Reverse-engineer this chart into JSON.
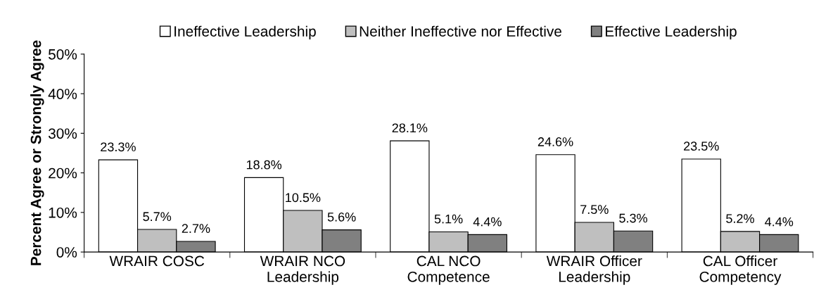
{
  "chart_data": {
    "type": "bar",
    "ylabel": "Percent Agree or Strongly Agree",
    "categories": [
      "WRAIR COSC",
      "WRAIR NCO\nLeadership",
      "CAL NCO\nCompetence",
      "WRAIR Officer\nLeadership",
      "CAL Officer\nCompetency"
    ],
    "series": [
      {
        "name": "Ineffective Leadership",
        "color": "#ffffff",
        "values": [
          23.3,
          18.8,
          28.1,
          24.6,
          23.5
        ],
        "value_labels": [
          "23.3%",
          "18.8%",
          "28.1%",
          "24.6%",
          "23.5%"
        ]
      },
      {
        "name": "Neither Ineffective nor Effective",
        "color": "#bfbfbf",
        "values": [
          5.7,
          10.5,
          5.1,
          7.5,
          5.2
        ],
        "value_labels": [
          "5.7%",
          "10.5%",
          "5.1%",
          "7.5%",
          "5.2%"
        ]
      },
      {
        "name": "Effective Leadership",
        "color": "#808080",
        "values": [
          2.7,
          5.6,
          4.4,
          5.3,
          4.4
        ],
        "value_labels": [
          "2.7%",
          "5.6%",
          "4.4%",
          "5.3%",
          "4.4%"
        ]
      }
    ],
    "ylim": [
      0,
      50
    ],
    "yticks": [
      {
        "value": 0,
        "label": "0%"
      },
      {
        "value": 10,
        "label": "10%"
      },
      {
        "value": 20,
        "label": "20%"
      },
      {
        "value": 30,
        "label": "30%"
      },
      {
        "value": 40,
        "label": "40%"
      },
      {
        "value": 50,
        "label": "50%"
      }
    ],
    "grid": false,
    "legend": "top"
  }
}
